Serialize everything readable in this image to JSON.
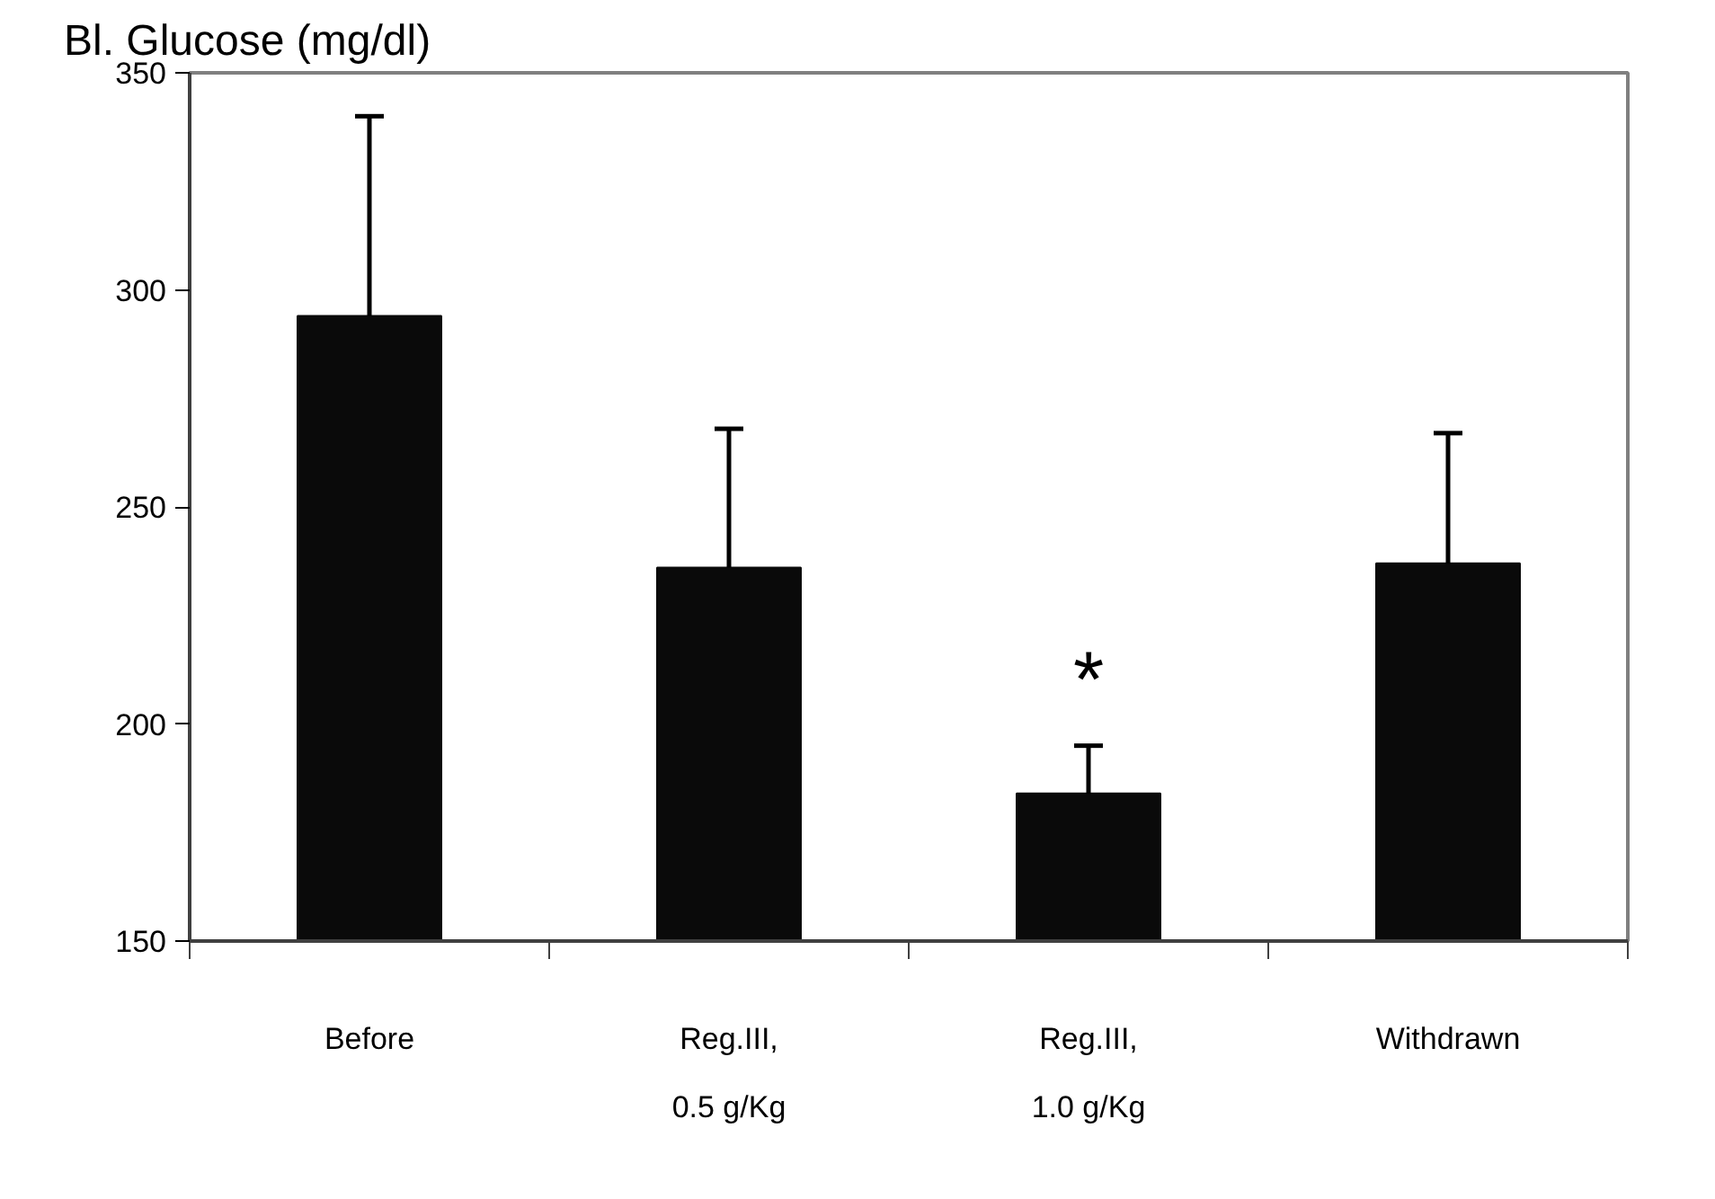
{
  "chart_data": {
    "type": "bar",
    "title": "Bl. Glucose (mg/dl)",
    "categories": [
      "Before",
      "Reg.III,\n0.5 g/Kg",
      "Reg.III,\n1.0 g/Kg",
      "Withdrawn"
    ],
    "values": [
      294,
      236,
      184,
      237
    ],
    "errors": [
      [
        294,
        340
      ],
      [
        236,
        268
      ],
      [
        184,
        195
      ],
      [
        237,
        267
      ]
    ],
    "color": "#0a0a0a",
    "ylim": [
      150,
      350
    ],
    "yticks": [
      150,
      200,
      250,
      300,
      350
    ],
    "grid": false,
    "value_labels": [
      null,
      null,
      "*",
      null
    ]
  }
}
